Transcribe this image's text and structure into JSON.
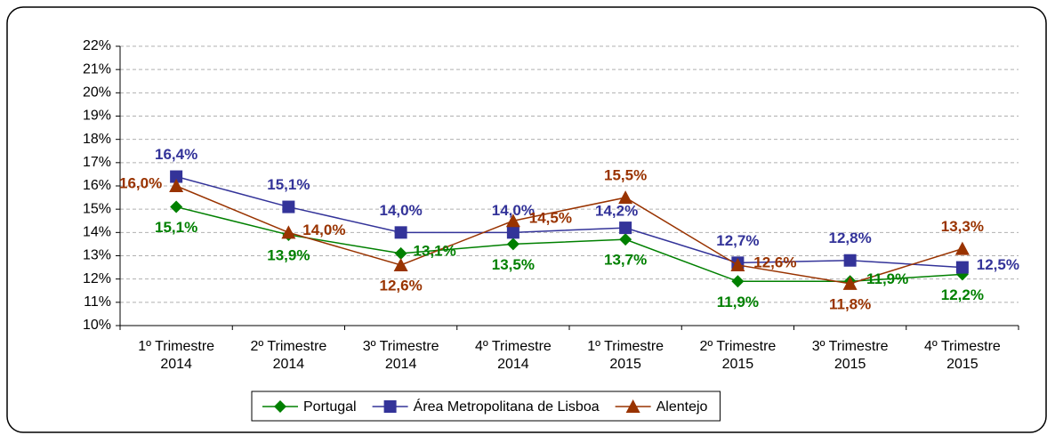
{
  "chart_data": {
    "type": "line",
    "categories": [
      [
        "1º Trimestre",
        "2014"
      ],
      [
        "2º Trimestre",
        "2014"
      ],
      [
        "3º Trimestre",
        "2014"
      ],
      [
        "4º Trimestre",
        "2014"
      ],
      [
        "1º Trimestre",
        "2015"
      ],
      [
        "2º Trimestre",
        "2015"
      ],
      [
        "3º Trimestre",
        "2015"
      ],
      [
        "4º Trimestre",
        "2015"
      ]
    ],
    "series": [
      {
        "name": "Portugal",
        "color": "#008000",
        "marker": "diamond",
        "values": [
          15.1,
          13.9,
          13.1,
          13.5,
          13.7,
          11.9,
          11.9,
          12.2
        ],
        "value_labels": [
          "15,1%",
          "13,9%",
          "13,1%",
          "13,5%",
          "13,7%",
          "11,9%",
          "11,9%",
          "12,2%"
        ]
      },
      {
        "name": "Área Metropolitana de Lisboa",
        "color": "#333399",
        "marker": "square",
        "values": [
          16.4,
          15.1,
          14.0,
          14.0,
          14.2,
          12.7,
          12.8,
          12.5
        ],
        "value_labels": [
          "16,4%",
          "15,1%",
          "14,0%",
          "14,0%",
          "14,2%",
          "12,7%",
          "12,8%",
          "12,5%"
        ]
      },
      {
        "name": "Alentejo",
        "color": "#993300",
        "marker": "triangle",
        "values": [
          16.0,
          14.0,
          12.6,
          14.5,
          15.5,
          12.6,
          11.8,
          13.3
        ],
        "value_labels": [
          "16,0%",
          "14,0%",
          "12,6%",
          "14,5%",
          "15,5%",
          "12,6%",
          "11,8%",
          "13,3%"
        ]
      }
    ],
    "ylim": [
      10,
      22
    ],
    "yticks": [
      {
        "value": 10,
        "label": "10%"
      },
      {
        "value": 11,
        "label": "11%"
      },
      {
        "value": 12,
        "label": "12%"
      },
      {
        "value": 13,
        "label": "13%"
      },
      {
        "value": 14,
        "label": "14%"
      },
      {
        "value": 15,
        "label": "15%"
      },
      {
        "value": 16,
        "label": "16%"
      },
      {
        "value": 17,
        "label": "17%"
      },
      {
        "value": 18,
        "label": "18%"
      },
      {
        "value": 19,
        "label": "19%"
      },
      {
        "value": 20,
        "label": "20%"
      },
      {
        "value": 21,
        "label": "21%"
      },
      {
        "value": 22,
        "label": "22%"
      }
    ],
    "grid": true,
    "legend": "bottom"
  }
}
